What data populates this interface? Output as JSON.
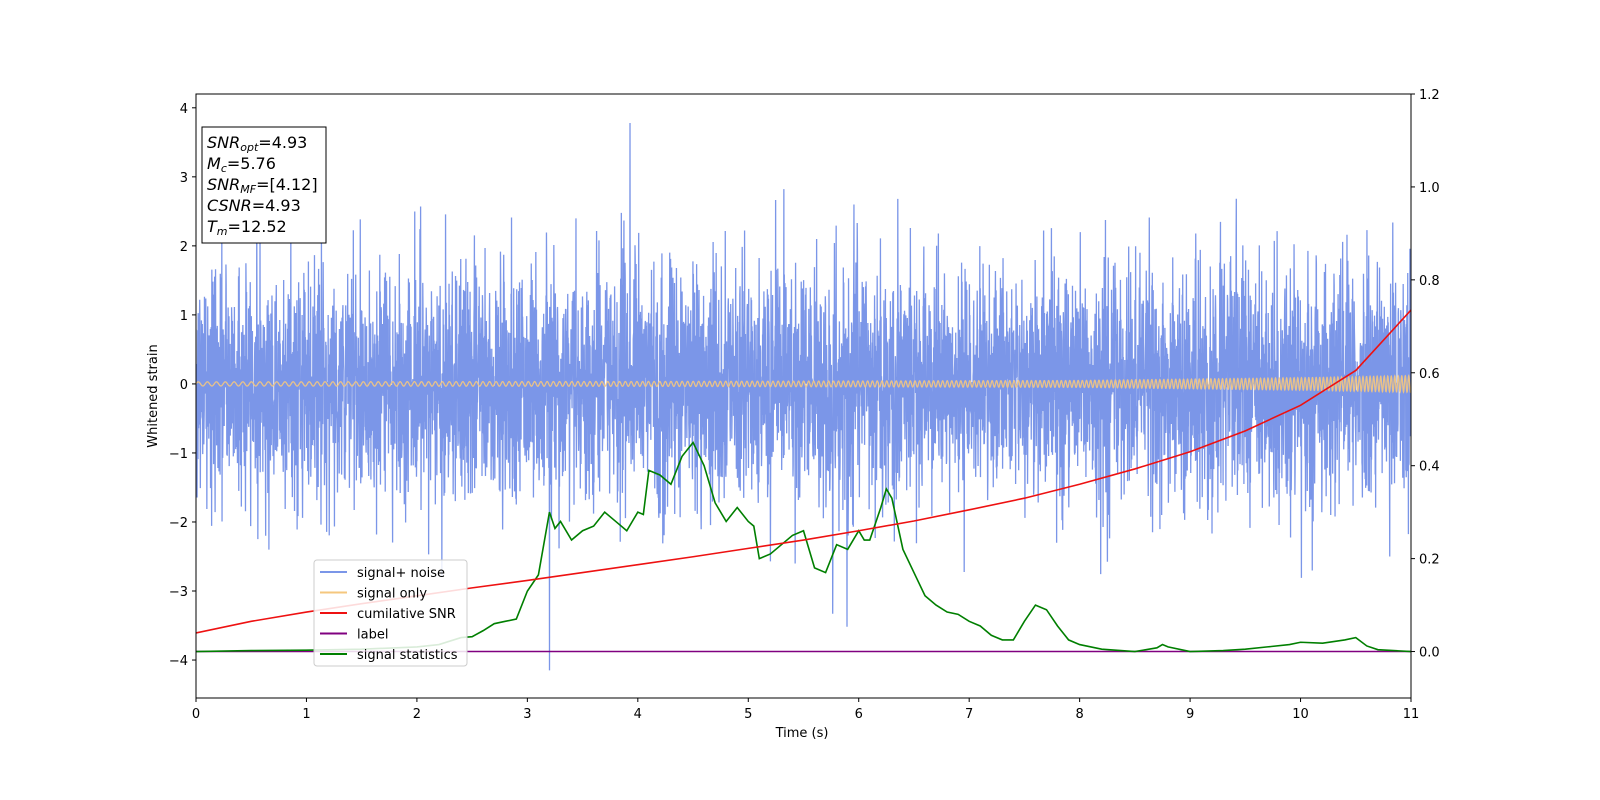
{
  "chart_data": {
    "type": "line",
    "xlabel": "Time (s)",
    "ylabel": "Whitened strain",
    "xlim": [
      0,
      11
    ],
    "ylim": [
      -4.55,
      4.2
    ],
    "y2lim": [
      -0.1,
      1.2
    ],
    "x_ticks": [
      0,
      1,
      2,
      3,
      4,
      5,
      6,
      7,
      8,
      9,
      10,
      11
    ],
    "y_ticks": [
      4,
      3,
      2,
      1,
      0,
      -1,
      -2,
      -3,
      -4
    ],
    "y_tick_labels": [
      "4",
      "3",
      "2",
      "1",
      "0",
      "−1",
      "−2",
      "−3",
      "−4"
    ],
    "y2_ticks": [
      1.2,
      1.0,
      0.8,
      0.6,
      0.4,
      0.2,
      0.0
    ],
    "y2_tick_labels": [
      "1.2",
      "1.0",
      "0.8",
      "0.6",
      "0.4",
      "0.2",
      "0.0"
    ],
    "grid": false,
    "legend_position": "lower-left",
    "info_box": [
      {
        "main": "SNR",
        "sub": "opt",
        "value": "=4.93"
      },
      {
        "main": "M",
        "sub": "c",
        "value": "=5.76"
      },
      {
        "main": "SNR",
        "sub": "MF",
        "value": "=[4.12]"
      },
      {
        "main": "CSNR",
        "sub": "",
        "value": "=4.93"
      },
      {
        "main": "T",
        "sub": "m",
        "value": "=12.52"
      }
    ],
    "series": [
      {
        "name": "signal+ noise",
        "color": "#7b96e8",
        "axis": "left",
        "description_values": {
          "std": 0.85,
          "t_start": 0,
          "t_end": 11,
          "peak_t": 3.93,
          "peak_y": 3.78,
          "min_t": 3.2,
          "min_y": -4.15
        }
      },
      {
        "name": "signal only",
        "color": "#f5c77e",
        "axis": "left",
        "amplitude_points": [
          [
            0,
            0.03
          ],
          [
            4,
            0.035
          ],
          [
            8,
            0.05
          ],
          [
            10,
            0.09
          ],
          [
            11,
            0.12
          ]
        ]
      },
      {
        "name": "cumilative SNR",
        "color": "#ee1111",
        "axis": "right",
        "x": [
          0,
          0.5,
          1,
          1.5,
          2,
          2.5,
          3,
          3.5,
          4,
          4.5,
          5,
          5.5,
          6,
          6.5,
          7,
          7.5,
          8,
          8.5,
          9,
          9.5,
          10,
          10.5,
          11
        ],
        "y": [
          0.04,
          0.065,
          0.085,
          0.103,
          0.12,
          0.137,
          0.153,
          0.17,
          0.187,
          0.204,
          0.222,
          0.24,
          0.26,
          0.281,
          0.305,
          0.33,
          0.36,
          0.393,
          0.43,
          0.475,
          0.53,
          0.605,
          0.735
        ]
      },
      {
        "name": "label",
        "color": "#800080",
        "axis": "right",
        "x": [
          0,
          11
        ],
        "y": [
          0.0,
          0.0
        ]
      },
      {
        "name": "signal statistics",
        "color": "#007f00",
        "axis": "right",
        "x": [
          0,
          0.5,
          1,
          1.5,
          2,
          2.2,
          2.4,
          2.5,
          2.6,
          2.7,
          2.8,
          2.9,
          3.0,
          3.1,
          3.2,
          3.25,
          3.3,
          3.4,
          3.5,
          3.6,
          3.7,
          3.8,
          3.9,
          4.0,
          4.05,
          4.1,
          4.2,
          4.3,
          4.4,
          4.5,
          4.6,
          4.7,
          4.8,
          4.9,
          5.0,
          5.05,
          5.1,
          5.2,
          5.3,
          5.4,
          5.5,
          5.6,
          5.7,
          5.8,
          5.9,
          6.0,
          6.05,
          6.1,
          6.2,
          6.25,
          6.3,
          6.4,
          6.5,
          6.6,
          6.7,
          6.8,
          6.9,
          7.0,
          7.1,
          7.2,
          7.3,
          7.4,
          7.5,
          7.6,
          7.7,
          7.8,
          7.9,
          8.0,
          8.2,
          8.5,
          8.7,
          8.75,
          8.8,
          9.0,
          9.3,
          9.5,
          9.7,
          9.9,
          10.0,
          10.2,
          10.4,
          10.5,
          10.6,
          10.7,
          11.0
        ],
        "y": [
          0.0,
          0.002,
          0.003,
          0.005,
          0.01,
          0.015,
          0.03,
          0.032,
          0.045,
          0.06,
          0.065,
          0.07,
          0.13,
          0.165,
          0.3,
          0.265,
          0.28,
          0.24,
          0.26,
          0.27,
          0.3,
          0.28,
          0.26,
          0.3,
          0.295,
          0.39,
          0.38,
          0.36,
          0.42,
          0.45,
          0.4,
          0.32,
          0.28,
          0.31,
          0.28,
          0.27,
          0.2,
          0.21,
          0.23,
          0.25,
          0.26,
          0.18,
          0.17,
          0.23,
          0.22,
          0.26,
          0.24,
          0.24,
          0.31,
          0.35,
          0.33,
          0.22,
          0.17,
          0.12,
          0.1,
          0.085,
          0.08,
          0.065,
          0.055,
          0.035,
          0.025,
          0.025,
          0.065,
          0.1,
          0.09,
          0.055,
          0.025,
          0.015,
          0.005,
          0.0,
          0.008,
          0.015,
          0.01,
          0.0,
          0.002,
          0.005,
          0.01,
          0.015,
          0.02,
          0.018,
          0.025,
          0.03,
          0.012,
          0.004,
          0.0
        ]
      }
    ]
  }
}
